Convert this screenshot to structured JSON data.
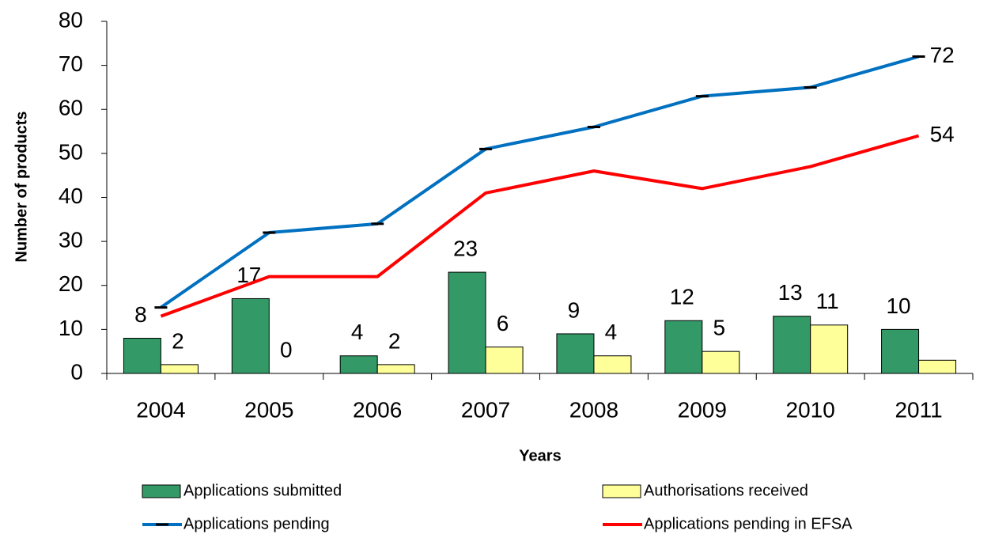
{
  "chart_data": {
    "type": "bar",
    "categories": [
      "2004",
      "2005",
      "2006",
      "2007",
      "2008",
      "2009",
      "2010",
      "2011"
    ],
    "series": [
      {
        "name": "Applications submitted",
        "type": "bar",
        "color": "#339966",
        "values": [
          8,
          17,
          4,
          23,
          9,
          12,
          13,
          10
        ],
        "value_labels": [
          "8",
          "17",
          "4",
          "23",
          "9",
          "12",
          "13",
          "10"
        ]
      },
      {
        "name": "Authorisations received",
        "type": "bar",
        "color": "#ffff99",
        "values": [
          2,
          0,
          2,
          6,
          4,
          5,
          11,
          3
        ],
        "value_labels": [
          "2",
          "0",
          "2",
          "6",
          "4",
          "5",
          "11",
          null
        ]
      },
      {
        "name": "Applications pending",
        "type": "line",
        "color": "#0070c0",
        "marker": "dash",
        "values": [
          15,
          32,
          34,
          51,
          56,
          63,
          65,
          72
        ],
        "value_labels": [
          null,
          null,
          null,
          null,
          null,
          null,
          null,
          "72"
        ]
      },
      {
        "name": "Applications pending in EFSA",
        "type": "line",
        "color": "#ff0000",
        "values": [
          13,
          22,
          22,
          41,
          46,
          42,
          47,
          54
        ],
        "value_labels": [
          null,
          null,
          null,
          null,
          null,
          null,
          null,
          "54"
        ]
      }
    ],
    "ylabel": "Number of products",
    "xlabel": "Years",
    "ylim": [
      0,
      80
    ],
    "yticks": [
      0,
      10,
      20,
      30,
      40,
      50,
      60,
      70,
      80
    ],
    "legend": "bottom"
  }
}
